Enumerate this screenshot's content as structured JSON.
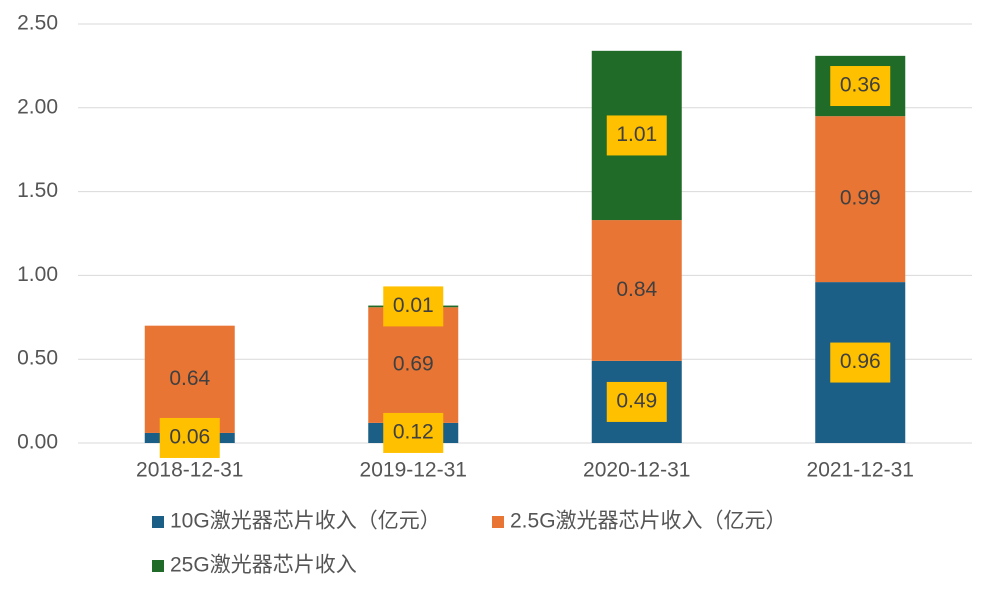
{
  "chart_data": {
    "type": "stacked-bar",
    "categories": [
      "2018-12-31",
      "2019-12-31",
      "2020-12-31",
      "2021-12-31"
    ],
    "series": [
      {
        "name": "10G激光器芯片收入（亿元）",
        "color": "#1b5e86",
        "label_background": "#ffc000",
        "values": [
          0.06,
          0.12,
          0.49,
          0.96
        ]
      },
      {
        "name": "2.5G激光器芯片收入（亿元）",
        "color": "#e97535",
        "label_background": null,
        "values": [
          0.64,
          0.69,
          0.84,
          0.99
        ]
      },
      {
        "name": "25G激光器芯片收入",
        "color": "#1f6b27",
        "label_background": "#ffc000",
        "values": [
          null,
          0.01,
          1.01,
          0.36
        ]
      }
    ],
    "ylim": [
      0,
      2.5
    ],
    "yticks": [
      {
        "value": 0,
        "label": "0.00"
      },
      {
        "value": 0.5,
        "label": "0.50"
      },
      {
        "value": 1,
        "label": "1.00"
      },
      {
        "value": 1.5,
        "label": "1.50"
      },
      {
        "value": 2,
        "label": "2.00"
      },
      {
        "value": 2.5,
        "label": "2.50"
      }
    ],
    "grid": true,
    "legend": "bottom"
  }
}
